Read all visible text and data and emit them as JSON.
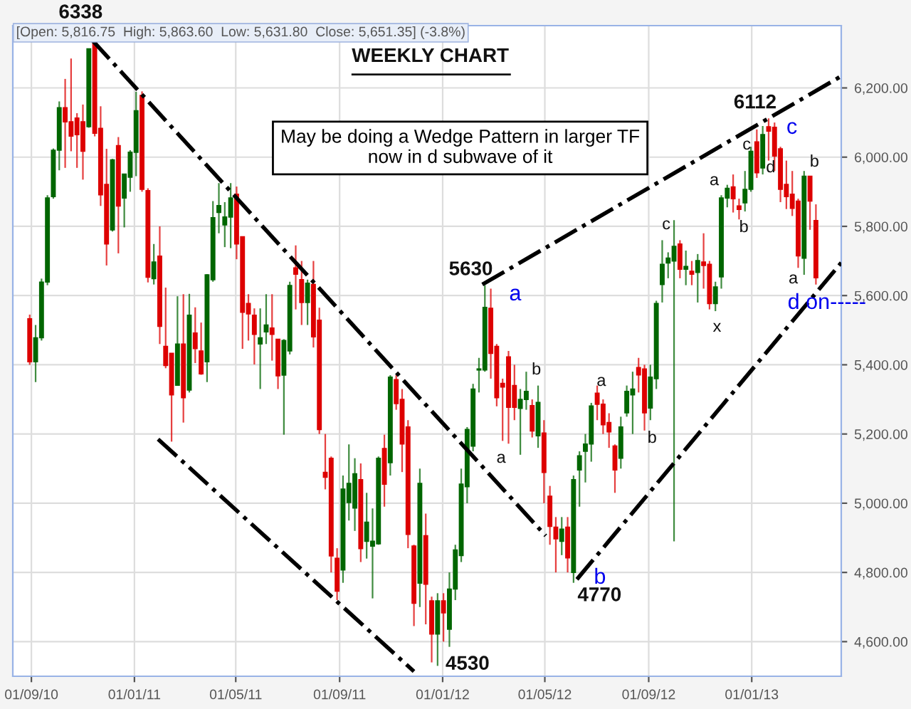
{
  "chart_data": {
    "type": "candlestick",
    "title": "WEEKLY CHART",
    "x": [
      "2010-08-30",
      "2010-09-06",
      "2010-09-13",
      "2010-09-20",
      "2010-09-27",
      "2010-10-04",
      "2010-10-11",
      "2010-10-18",
      "2010-10-25",
      "2010-11-01",
      "2010-11-08",
      "2010-11-15",
      "2010-11-22",
      "2010-11-29",
      "2010-12-06",
      "2010-12-13",
      "2010-12-20",
      "2010-12-27",
      "2011-01-03",
      "2011-01-10",
      "2011-01-17",
      "2011-01-24",
      "2011-01-31",
      "2011-02-07",
      "2011-02-14",
      "2011-02-21",
      "2011-02-28",
      "2011-03-07",
      "2011-03-14",
      "2011-03-21",
      "2011-03-28",
      "2011-04-04",
      "2011-04-11",
      "2011-04-18",
      "2011-04-25",
      "2011-05-02",
      "2011-05-09",
      "2011-05-16",
      "2011-05-23",
      "2011-05-30",
      "2011-06-06",
      "2011-06-13",
      "2011-06-20",
      "2011-06-27",
      "2011-07-04",
      "2011-07-11",
      "2011-07-18",
      "2011-07-25",
      "2011-08-01",
      "2011-08-08",
      "2011-08-15",
      "2011-08-22",
      "2011-08-29",
      "2011-09-05",
      "2011-09-12",
      "2011-09-19",
      "2011-09-26",
      "2011-10-03",
      "2011-10-10",
      "2011-10-17",
      "2011-10-24",
      "2011-10-31",
      "2011-11-07",
      "2011-11-14",
      "2011-11-21",
      "2011-11-28",
      "2011-12-05",
      "2011-12-12",
      "2011-12-19",
      "2011-12-26",
      "2012-01-02",
      "2012-01-09",
      "2012-01-16",
      "2012-01-23",
      "2012-01-30",
      "2012-02-06",
      "2012-02-13",
      "2012-02-20",
      "2012-02-27",
      "2012-03-05",
      "2012-03-12",
      "2012-03-19",
      "2012-03-26",
      "2012-04-02",
      "2012-04-09",
      "2012-04-16",
      "2012-04-23",
      "2012-04-30",
      "2012-05-07",
      "2012-05-14",
      "2012-05-21",
      "2012-05-28",
      "2012-06-04",
      "2012-06-11",
      "2012-06-18",
      "2012-06-25",
      "2012-07-02",
      "2012-07-09",
      "2012-07-16",
      "2012-07-23",
      "2012-07-30",
      "2012-08-06",
      "2012-08-13",
      "2012-08-20",
      "2012-08-27",
      "2012-09-03",
      "2012-09-10",
      "2012-09-17",
      "2012-09-24",
      "2012-10-01",
      "2012-10-08",
      "2012-10-15",
      "2012-10-22",
      "2012-10-29",
      "2012-11-05",
      "2012-11-12",
      "2012-11-19",
      "2012-11-26",
      "2012-12-03",
      "2012-12-10",
      "2012-12-17",
      "2012-12-24",
      "2012-12-31",
      "2013-01-07",
      "2013-01-14",
      "2013-01-21",
      "2013-01-28",
      "2013-02-04",
      "2013-02-11",
      "2013-02-18",
      "2013-02-25",
      "2013-03-04",
      "2013-03-11",
      "2013-03-18"
    ],
    "ohlc": [
      [
        5533,
        5545,
        5400,
        5409
      ],
      [
        5409,
        5515,
        5350,
        5478
      ],
      [
        5478,
        5649,
        5470,
        5639
      ],
      [
        5639,
        5890,
        5630,
        5882
      ],
      [
        5886,
        6025,
        5880,
        6020
      ],
      [
        6020,
        6161,
        5962,
        6143
      ],
      [
        6143,
        6226,
        5969,
        6102
      ],
      [
        6102,
        6285,
        6017,
        6061
      ],
      [
        6113,
        6127,
        5969,
        6065
      ],
      [
        6102,
        6152,
        5935,
        6017
      ],
      [
        6088,
        6313,
        6085,
        6313
      ],
      [
        6336,
        6338,
        6060,
        6069
      ],
      [
        6083,
        6147,
        5859,
        5891
      ],
      [
        5921,
        6024,
        5687,
        5749
      ],
      [
        5790,
        5995,
        5785,
        5992
      ],
      [
        6033,
        6058,
        5722,
        5859
      ],
      [
        5882,
        5951,
        5797,
        5951
      ],
      [
        5942,
        6020,
        5900,
        6014
      ],
      [
        6014,
        6189,
        5945,
        6134
      ],
      [
        6178,
        6190,
        5900,
        5907
      ],
      [
        5903,
        5910,
        5638,
        5653
      ],
      [
        5649,
        5749,
        5632,
        5697
      ],
      [
        5714,
        5800,
        5460,
        5511
      ],
      [
        5453,
        5623,
        5390,
        5398
      ],
      [
        5433,
        5433,
        5178,
        5313
      ],
      [
        5341,
        5598,
        5341,
        5460
      ],
      [
        5460,
        5604,
        5233,
        5305
      ],
      [
        5327,
        5605,
        5320,
        5543
      ],
      [
        5492,
        5566,
        5405,
        5447
      ],
      [
        5440,
        5522,
        5371,
        5374
      ],
      [
        5409,
        5662,
        5350,
        5660
      ],
      [
        5646,
        5873,
        5640,
        5825
      ],
      [
        5840,
        5925,
        5780,
        5860
      ],
      [
        5804,
        5870,
        5740,
        5827
      ],
      [
        5827,
        5925,
        5737,
        5882
      ],
      [
        5893,
        5915,
        5705,
        5749
      ],
      [
        5770,
        5770,
        5446,
        5552
      ],
      [
        5577,
        5604,
        5470,
        5547
      ],
      [
        5543,
        5563,
        5401,
        5488
      ],
      [
        5460,
        5563,
        5330,
        5478
      ],
      [
        5495,
        5604,
        5460,
        5515
      ],
      [
        5506,
        5604,
        5412,
        5488
      ],
      [
        5474,
        5474,
        5330,
        5368
      ],
      [
        5370,
        5474,
        5198,
        5470
      ],
      [
        5440,
        5640,
        5430,
        5629
      ],
      [
        5680,
        5745,
        5560,
        5662
      ],
      [
        5646,
        5700,
        5515,
        5580
      ],
      [
        5580,
        5646,
        5515,
        5636
      ],
      [
        5632,
        5700,
        5450,
        5481
      ],
      [
        5529,
        5565,
        5200,
        5213
      ],
      [
        5089,
        5200,
        5040,
        5075
      ],
      [
        5130,
        5135,
        4800,
        4848
      ],
      [
        4841,
        4870,
        4720,
        4746
      ],
      [
        4807,
        5080,
        4770,
        5041
      ],
      [
        5002,
        5170,
        4950,
        5057
      ],
      [
        4986,
        5130,
        4920,
        5085
      ],
      [
        5068,
        5115,
        4830,
        4869
      ],
      [
        4890,
        5030,
        4840,
        4945
      ],
      [
        4876,
        4985,
        4725,
        4890
      ],
      [
        4883,
        5135,
        4880,
        5130
      ],
      [
        5158,
        5198,
        4990,
        5055
      ],
      [
        5117,
        5370,
        5080,
        5364
      ],
      [
        5357,
        5370,
        5270,
        5288
      ],
      [
        5300,
        5330,
        5090,
        5171
      ],
      [
        5220,
        5240,
        4870,
        4910
      ],
      [
        4876,
        4880,
        4645,
        4711
      ],
      [
        4769,
        5100,
        4700,
        5057
      ],
      [
        4906,
        4970,
        4650,
        4766
      ],
      [
        4718,
        4730,
        4540,
        4622
      ],
      [
        4622,
        4740,
        4530,
        4718
      ],
      [
        4718,
        4740,
        4600,
        4683
      ],
      [
        4636,
        4800,
        4585,
        4752
      ],
      [
        4752,
        4880,
        4720,
        4865
      ],
      [
        4849,
        5100,
        4830,
        5055
      ],
      [
        5048,
        5220,
        5000,
        5213
      ],
      [
        5165,
        5345,
        5150,
        5330
      ],
      [
        5385,
        5420,
        5320,
        5388
      ],
      [
        5385,
        5630,
        5380,
        5566
      ],
      [
        5563,
        5620,
        5360,
        5433
      ],
      [
        5453,
        5460,
        5280,
        5305
      ],
      [
        5346,
        5360,
        5180,
        5336
      ],
      [
        5423,
        5440,
        5172,
        5277
      ],
      [
        5340,
        5400,
        5240,
        5277
      ],
      [
        5274,
        5330,
        5140,
        5300
      ],
      [
        5300,
        5380,
        5270,
        5323
      ],
      [
        5282,
        5300,
        5190,
        5209
      ],
      [
        5195,
        5340,
        5160,
        5291
      ],
      [
        5203,
        5240,
        5000,
        5089
      ],
      [
        5020,
        5050,
        4880,
        4933
      ],
      [
        4931,
        4960,
        4800,
        4897
      ],
      [
        4890,
        4960,
        4850,
        4925
      ],
      [
        4931,
        4960,
        4800,
        4842
      ],
      [
        4800,
        5080,
        4770,
        5068
      ],
      [
        5096,
        5150,
        4990,
        5137
      ],
      [
        5150,
        5200,
        5060,
        5171
      ],
      [
        5171,
        5290,
        5120,
        5281
      ],
      [
        5318,
        5340,
        5240,
        5286
      ],
      [
        5286,
        5300,
        5200,
        5227
      ],
      [
        5233,
        5260,
        5160,
        5206
      ],
      [
        5165,
        5170,
        5030,
        5096
      ],
      [
        5130,
        5250,
        5100,
        5220
      ],
      [
        5261,
        5340,
        5250,
        5323
      ],
      [
        5313,
        5380,
        5200,
        5330
      ],
      [
        5392,
        5420,
        5320,
        5371
      ],
      [
        5388,
        5400,
        5210,
        5261
      ],
      [
        5275,
        5400,
        5240,
        5364
      ],
      [
        5360,
        5585,
        5330,
        5577
      ],
      [
        5632,
        5760,
        5580,
        5690
      ],
      [
        5694,
        5725,
        5650,
        5708
      ],
      [
        5700,
        5818,
        4890,
        5742
      ],
      [
        5749,
        5760,
        5650,
        5676
      ],
      [
        5676,
        5730,
        5630,
        5684
      ],
      [
        5670,
        5700,
        5630,
        5662
      ],
      [
        5667,
        5720,
        5580,
        5701
      ],
      [
        5697,
        5780,
        5620,
        5687
      ],
      [
        5690,
        5700,
        5560,
        5577
      ],
      [
        5577,
        5640,
        5555,
        5625
      ],
      [
        5654,
        5890,
        5620,
        5882
      ],
      [
        5882,
        5920,
        5855,
        5910
      ],
      [
        5914,
        5950,
        5840,
        5880
      ],
      [
        5859,
        5880,
        5820,
        5849
      ],
      [
        5868,
        5960,
        5843,
        5907
      ],
      [
        5907,
        6030,
        5900,
        6017
      ],
      [
        6044,
        6080,
        5940,
        5955
      ],
      [
        5969,
        6090,
        5950,
        6065
      ],
      [
        6088,
        6112,
        5990,
        6075
      ],
      [
        6086,
        6100,
        5960,
        6003
      ],
      [
        6024,
        6030,
        5870,
        5907
      ],
      [
        5921,
        5990,
        5850,
        5886
      ],
      [
        5893,
        5960,
        5830,
        5852
      ],
      [
        5873,
        5880,
        5680,
        5715
      ],
      [
        5708,
        5960,
        5660,
        5945
      ],
      [
        5945,
        5945,
        5790,
        5873
      ],
      [
        5816.75,
        5863.6,
        5631.8,
        5651.35
      ]
    ],
    "colors": [
      "#dd0000",
      "#006600",
      "#006600",
      "#006600",
      "#006600",
      "#006600",
      "#dd0000",
      "#dd0000",
      "#dd0000",
      "#dd0000",
      "#006600",
      "#dd0000",
      "#dd0000",
      "#dd0000",
      "#006600",
      "#dd0000",
      "#006600",
      "#006600",
      "#006600",
      "#dd0000",
      "#dd0000",
      "#006600",
      "#dd0000",
      "#dd0000",
      "#dd0000",
      "#006600",
      "#dd0000",
      "#006600",
      "#dd0000",
      "#dd0000",
      "#006600",
      "#006600",
      "#006600",
      "#006600",
      "#006600",
      "#dd0000",
      "#dd0000",
      "#dd0000",
      "#dd0000",
      "#006600",
      "#006600",
      "#dd0000",
      "#dd0000",
      "#006600",
      "#006600",
      "#dd0000",
      "#dd0000",
      "#006600",
      "#dd0000",
      "#dd0000",
      "#dd0000",
      "#dd0000",
      "#dd0000",
      "#006600",
      "#006600",
      "#006600",
      "#dd0000",
      "#006600",
      "#006600",
      "#006600",
      "#dd0000",
      "#006600",
      "#dd0000",
      "#dd0000",
      "#dd0000",
      "#dd0000",
      "#006600",
      "#dd0000",
      "#dd0000",
      "#006600",
      "#dd0000",
      "#006600",
      "#006600",
      "#006600",
      "#006600",
      "#006600",
      "#006600",
      "#006600",
      "#dd0000",
      "#dd0000",
      "#dd0000",
      "#dd0000",
      "#dd0000",
      "#006600",
      "#006600",
      "#dd0000",
      "#006600",
      "#dd0000",
      "#dd0000",
      "#dd0000",
      "#006600",
      "#dd0000",
      "#006600",
      "#006600",
      "#006600",
      "#006600",
      "#dd0000",
      "#dd0000",
      "#dd0000",
      "#dd0000",
      "#006600",
      "#006600",
      "#006600",
      "#dd0000",
      "#dd0000",
      "#006600",
      "#006600",
      "#006600",
      "#006600",
      "#006600",
      "#dd0000",
      "#006600",
      "#dd0000",
      "#006600",
      "#dd0000",
      "#dd0000",
      "#006600",
      "#006600",
      "#006600",
      "#dd0000",
      "#dd0000",
      "#006600",
      "#006600",
      "#dd0000",
      "#006600",
      "#dd0000",
      "#dd0000",
      "#dd0000",
      "#dd0000",
      "#dd0000",
      "#dd0000",
      "#006600",
      "#dd0000",
      "#dd0000"
    ],
    "series": [
      {
        "type": "line",
        "x": [
          "2010-11-12",
          "2012-05-02"
        ],
        "values": [
          6338,
          4906
        ],
        "color": "#000000",
        "line_style": "dashdot"
      },
      {
        "type": "line",
        "x": [
          "2011-01-29",
          "2011-11-28"
        ],
        "values": [
          5185,
          4514
        ],
        "color": "#000000",
        "line_style": "dashdot"
      },
      {
        "type": "line",
        "x": [
          "2012-02-17",
          "2013-04-17"
        ],
        "values": [
          5632,
          6234
        ],
        "color": "#000000",
        "line_style": "dashdot"
      },
      {
        "type": "line",
        "x": [
          "2012-06-08",
          "2013-04-17"
        ],
        "values": [
          4780,
          5695
        ],
        "color": "#000000",
        "line_style": "dashdot"
      }
    ],
    "xlim": [
      "2010-08-10",
      "2013-04-17"
    ],
    "ylim": [
      4500,
      6380
    ],
    "xticks": [
      {
        "value": "2010-09-01",
        "label": "01/09/10"
      },
      {
        "value": "2011-01-01",
        "label": "01/01/11"
      },
      {
        "value": "2011-05-01",
        "label": "01/05/11"
      },
      {
        "value": "2011-09-01",
        "label": "01/09/11"
      },
      {
        "value": "2012-01-01",
        "label": "01/01/12"
      },
      {
        "value": "2012-05-01",
        "label": "01/05/12"
      },
      {
        "value": "2012-09-01",
        "label": "01/09/12"
      },
      {
        "value": "2013-01-01",
        "label": "01/01/13"
      }
    ],
    "yticks": [
      {
        "value": 4600,
        "label": "4,600.00"
      },
      {
        "value": 4800,
        "label": "4,800.00"
      },
      {
        "value": 5000,
        "label": "5,000.00"
      },
      {
        "value": 5200,
        "label": "5,200.00"
      },
      {
        "value": 5400,
        "label": "5,400.00"
      },
      {
        "value": 5600,
        "label": "5,600.00"
      },
      {
        "value": 5800,
        "label": "5,800.00"
      },
      {
        "value": 6000,
        "label": "6,000.00"
      },
      {
        "value": 6200,
        "label": "6,200.00"
      }
    ],
    "grid": true,
    "annotations": [
      "[Open: 5,816.75  High: 5,863.60  Low: 5,631.80  Close: 5,651.35] (-3.8%)",
      "May be doing a Wedge Pattern in larger TF\nnow in d subwave of it",
      "a",
      "a",
      "b",
      "b",
      "a",
      "b",
      "c",
      "a",
      "x",
      "b",
      "c",
      "d",
      "c",
      "a",
      "b",
      "d on-----",
      {
        "text": "6338",
        "x": "2010-11-15",
        "y": 6338
      },
      {
        "text": "5630",
        "x": "2012-02-20",
        "y": 5630
      },
      {
        "text": "4530",
        "x": "2011-12-26",
        "y": 4530
      },
      {
        "text": "4770",
        "x": "2012-06-04",
        "y": 4770
      },
      {
        "text": "6112",
        "x": "2013-01-21",
        "y": 6112
      }
    ]
  }
}
